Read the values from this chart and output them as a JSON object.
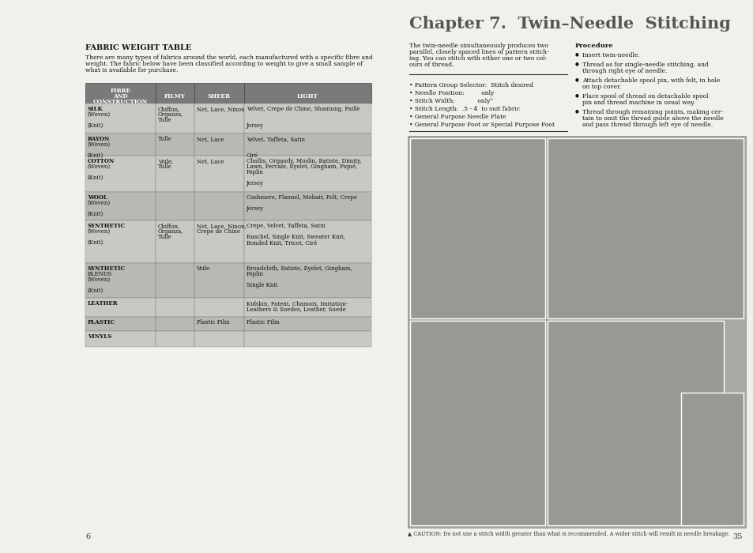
{
  "page_bg": "#f0f0ec",
  "left_page_number": "6",
  "right_page_number": "35",
  "title_fabric": "FABRIC WEIGHT TABLE",
  "intro_text": "There are many types of fabrics around the world, each manufactured with a specific fibre and\nweight. The fabric below have been classified according to weight to give a small sample of\nwhat is available for purchase.",
  "table_header": [
    "FIBRE\nAND\nCONSTRUCTION",
    "FILMY",
    "SHEER",
    "LIGHT"
  ],
  "table_header_bg": "#7a7a7a",
  "table_row_bg_odd": "#c8c8c4",
  "table_row_bg_even": "#b8b8b4",
  "table_rows": [
    [
      "SILK\n(Woven)\n\n(Knit)",
      "Chiffon,\nOrganza,\nTulle",
      "Net, Lace, Ninon",
      "Velvet, Crepe de Chine, Shantung, Faille\n\n\nJersey"
    ],
    [
      "RAYON\n(Woven)\n\n(Knit)",
      "Tulle",
      "Net, Lace",
      "Velvet, Taffeta, Satin\n\n\nCiré"
    ],
    [
      "COTTON\n(Woven)\n\n(Knit)",
      "Voile,\nTulle",
      "Net, Lace",
      "Challis, Organdy, Muslin, Batiste, Dimity,\nLawn, Percale, Eyelet, Gingham, Piqué,\nPoplin\n\nJersey"
    ],
    [
      "WOOL\n(Woven)\n\n(Knit)",
      "",
      "",
      "Cashmere, Flannel, Mohair, Felt, Crepe\n\nJersey"
    ],
    [
      "SYNTHETIC\n(Woven)\n\n(Knit)",
      "Chiffon,\nOrganza,\nTulle",
      "Net, Lace, Ninon,\nCrepe de Chine",
      "Crepe, Velvet, Taffeta, Satin\n\nRaschel, Single Knit, Sweater Knit,\nBonded Knit, Tricot, Ciré"
    ],
    [
      "SYNTHETIC\nBLENDS\n(Woven)\n\n(Knit)",
      "",
      "Voile",
      "Broadcloth, Batiste, Eyelet, Gingham,\nPoplin\n\nSingle Knit"
    ],
    [
      "LEATHER",
      "",
      "",
      "Kidskin, Patent, Chamois, Imitation-\nLeathers & Suedes, Leather, Suede"
    ],
    [
      "PLASTIC",
      "",
      "Plastic Film",
      "Plastic Film"
    ],
    [
      "VINYLS",
      "",
      "",
      ""
    ]
  ],
  "chapter_title_parts": [
    "Chapter 7.  Twin–Needle  Stitching"
  ],
  "body_text": "The twin-needle simultaneously produces two\nparallel, closely spaced lines of pattern stitch-\ning. You can stitch with either one or two col-\nours of thread.",
  "procedure_title": "Procedure",
  "procedure_items": [
    "Insert twin-needle.",
    "Thread as for single-needle stitching, and\nthrough right eye of needle.",
    "Attach detachable spool pin, with felt, in hole\non top cover.",
    "Place spool of thread on detachable spool\npin and thread machine in usual way.",
    "Thread through remaining points, making cer-\ntain to omit the thread guide above the needle\nand pass thread through left eye of needle."
  ],
  "settings_items": [
    "Pattern Group Selector:  Stitch desired",
    "Needle Position:         only",
    "Stitch Width:            onlyᴬ",
    "Stitch Length:  .5 - 4  to suit fabric",
    "General Purpose Needle Plate",
    "General Purpose Foot or Special Purpose Foot"
  ],
  "caution_text": "▲ CAUTION: Do not use a stitch width greater than what is recommended. A wider stitch will result in needle breakage.",
  "img_bg": "#a8a8a4",
  "img_inner_bg": "#989894"
}
